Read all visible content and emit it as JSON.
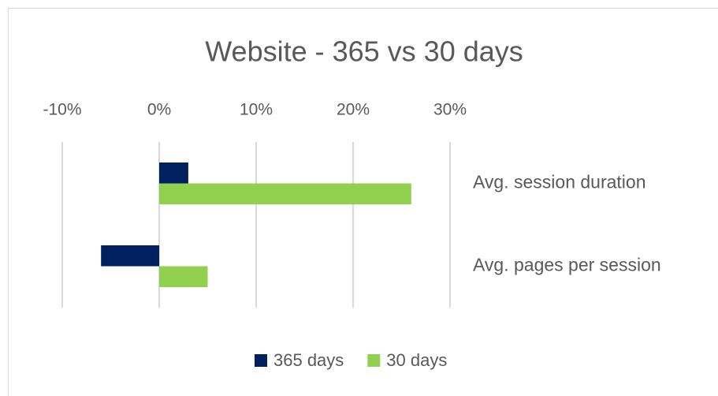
{
  "chart_data": {
    "type": "bar",
    "orientation": "horizontal",
    "title": "Website - 365 vs 30 days",
    "categories": [
      "Avg. session duration",
      "Avg. pages per session"
    ],
    "series": [
      {
        "name": "365 days",
        "color": "#002060",
        "values": [
          3,
          -6
        ]
      },
      {
        "name": "30 days",
        "color": "#92d050",
        "values": [
          26,
          5
        ]
      }
    ],
    "xlim": [
      -10,
      30
    ],
    "xticks": [
      {
        "value": -10,
        "label": "-10%"
      },
      {
        "value": 0,
        "label": "0%"
      },
      {
        "value": 10,
        "label": "10%"
      },
      {
        "value": 20,
        "label": "20%"
      },
      {
        "value": 30,
        "label": "30%"
      }
    ],
    "grid": true,
    "legend": "bottom"
  }
}
